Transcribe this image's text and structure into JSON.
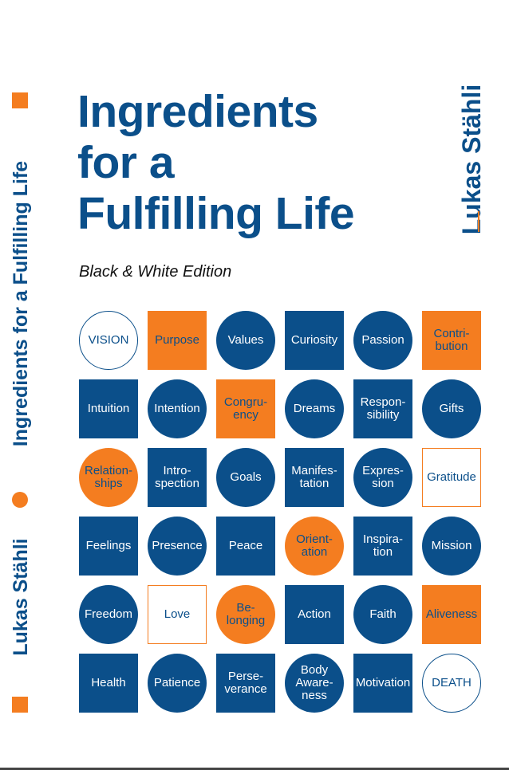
{
  "spine": {
    "title": "Ingredients for a Fulfilling Life",
    "author": "Lukas Stähli"
  },
  "cover": {
    "title_lines": [
      "Ingredients",
      "for a",
      "Fulfilling Life"
    ],
    "subtitle": "Black & White Edition",
    "author": "Lukas Stähli"
  },
  "colors": {
    "blue": "#0b4f8a",
    "orange": "#f47d20"
  },
  "tiles": [
    {
      "label": "VISION",
      "shape": "circle",
      "style": "outline-blue"
    },
    {
      "label": "Purpose",
      "shape": "square",
      "style": "orange"
    },
    {
      "label": "Values",
      "shape": "circle",
      "style": "blue"
    },
    {
      "label": "Curiosity",
      "shape": "square",
      "style": "blue"
    },
    {
      "label": "Passion",
      "shape": "circle",
      "style": "blue"
    },
    {
      "label": "Contri-\nbution",
      "shape": "square",
      "style": "orange"
    },
    {
      "label": "Intuition",
      "shape": "square",
      "style": "blue"
    },
    {
      "label": "Intention",
      "shape": "circle",
      "style": "blue"
    },
    {
      "label": "Congru-\nency",
      "shape": "square",
      "style": "orange"
    },
    {
      "label": "Dreams",
      "shape": "circle",
      "style": "blue"
    },
    {
      "label": "Respon-\nsibility",
      "shape": "square",
      "style": "blue"
    },
    {
      "label": "Gifts",
      "shape": "circle",
      "style": "blue"
    },
    {
      "label": "Relation-\nships",
      "shape": "circle",
      "style": "orange"
    },
    {
      "label": "Intro-\nspection",
      "shape": "square",
      "style": "blue"
    },
    {
      "label": "Goals",
      "shape": "circle",
      "style": "blue"
    },
    {
      "label": "Manifes-\ntation",
      "shape": "square",
      "style": "blue"
    },
    {
      "label": "Expres-\nsion",
      "shape": "circle",
      "style": "blue"
    },
    {
      "label": "Gratitude",
      "shape": "square",
      "style": "outline-orange"
    },
    {
      "label": "Feelings",
      "shape": "square",
      "style": "blue"
    },
    {
      "label": "Presence",
      "shape": "circle",
      "style": "blue"
    },
    {
      "label": "Peace",
      "shape": "square",
      "style": "blue"
    },
    {
      "label": "Orient-\nation",
      "shape": "circle",
      "style": "orange"
    },
    {
      "label": "Inspira-\ntion",
      "shape": "square",
      "style": "blue"
    },
    {
      "label": "Mission",
      "shape": "circle",
      "style": "blue"
    },
    {
      "label": "Freedom",
      "shape": "circle",
      "style": "blue"
    },
    {
      "label": "Love",
      "shape": "square",
      "style": "outline-orange"
    },
    {
      "label": "Be-\nlonging",
      "shape": "circle",
      "style": "orange"
    },
    {
      "label": "Action",
      "shape": "square",
      "style": "blue"
    },
    {
      "label": "Faith",
      "shape": "circle",
      "style": "blue"
    },
    {
      "label": "Aliveness",
      "shape": "square",
      "style": "orange"
    },
    {
      "label": "Health",
      "shape": "square",
      "style": "blue"
    },
    {
      "label": "Patience",
      "shape": "circle",
      "style": "blue"
    },
    {
      "label": "Perse-\nverance",
      "shape": "square",
      "style": "blue"
    },
    {
      "label": "Body\nAware-\nness",
      "shape": "circle",
      "style": "blue"
    },
    {
      "label": "Motivation",
      "shape": "square",
      "style": "blue"
    },
    {
      "label": "DEATH",
      "shape": "circle",
      "style": "outline-blue"
    }
  ]
}
